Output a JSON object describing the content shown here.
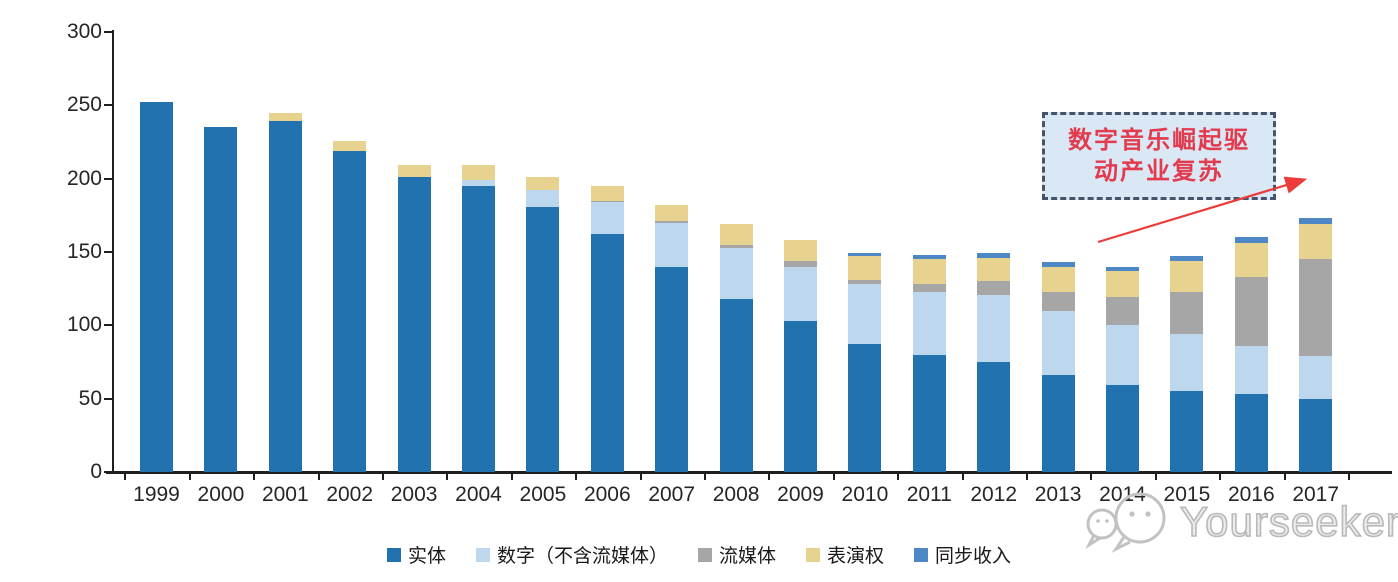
{
  "chart_data": {
    "type": "bar",
    "stacked": true,
    "title": "",
    "xlabel": "",
    "ylabel": "",
    "categories": [
      "1999",
      "2000",
      "2001",
      "2002",
      "2003",
      "2004",
      "2005",
      "2006",
      "2007",
      "2008",
      "2009",
      "2010",
      "2011",
      "2012",
      "2013",
      "2014",
      "2015",
      "2016",
      "2017"
    ],
    "series": [
      {
        "name": "实体",
        "color": "#2272B0",
        "values": [
          252,
          235,
          239,
          219,
          201,
          195,
          181,
          162,
          140,
          118,
          103,
          87,
          80,
          75,
          66,
          59,
          55,
          53,
          50
        ]
      },
      {
        "name": "数字（不含流媒体）",
        "color": "#BDD7EE",
        "values": [
          0,
          0,
          0,
          0,
          0,
          4,
          11,
          22,
          30,
          35,
          37,
          41,
          43,
          46,
          44,
          41,
          39,
          33,
          29
        ]
      },
      {
        "name": "流媒体",
        "color": "#A6A6A6",
        "values": [
          0,
          0,
          0,
          0,
          0,
          0,
          0,
          1,
          1,
          2,
          4,
          3,
          5,
          9,
          13,
          19,
          29,
          47,
          66
        ]
      },
      {
        "name": "表演权",
        "color": "#E7D38F",
        "values": [
          0,
          0,
          6,
          7,
          8,
          10,
          9,
          10,
          11,
          14,
          14,
          16,
          17,
          16,
          17,
          18,
          21,
          23,
          24
        ]
      },
      {
        "name": "同步收入",
        "color": "#4D87C5",
        "values": [
          0,
          0,
          0,
          0,
          0,
          0,
          0,
          0,
          0,
          0,
          0,
          2,
          3,
          3,
          3,
          3,
          3,
          4,
          4
        ]
      }
    ],
    "ylim": [
      0,
      300
    ],
    "y_ticks": [
      0,
      50,
      100,
      150,
      200,
      250,
      300
    ],
    "grid": false,
    "legend_position": "bottom",
    "axis_color": "#1f1f1f"
  },
  "annotation": {
    "line1": "数字音乐崛起驱",
    "line2": "动产业复苏",
    "text_color": "#E23B4E",
    "border_color": "#44546A",
    "fill_color": "#DAE7F5",
    "arrow_color": "#EC3B3B"
  },
  "watermark": {
    "text": "Yourseeker",
    "icon": "chat-bubbles-logo-icon",
    "color": "#b9b9b9"
  }
}
